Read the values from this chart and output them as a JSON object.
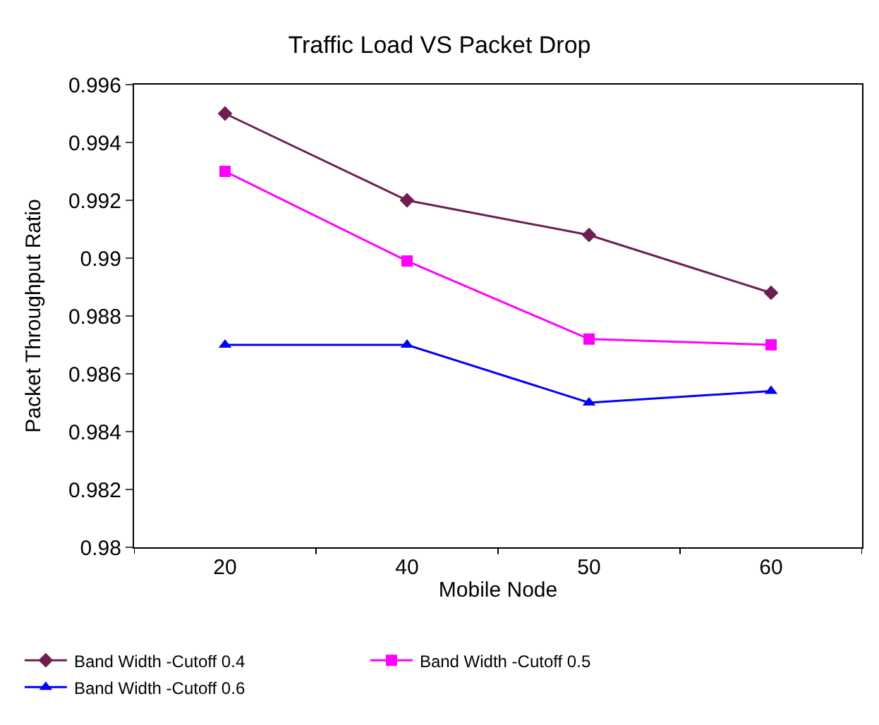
{
  "chart_data": {
    "type": "line",
    "title": "Traffic Load VS Packet Drop",
    "xlabel": "Mobile Node",
    "ylabel": "Packet Throughput Ratio",
    "categories": [
      "20",
      "40",
      "50",
      "60"
    ],
    "series": [
      {
        "name": "Band Width -Cutoff 0.4",
        "color": "#6e1f4f",
        "marker": "diamond",
        "values": [
          0.995,
          0.992,
          0.9908,
          0.9888
        ]
      },
      {
        "name": "Band Width -Cutoff 0.5",
        "color": "#ff00ff",
        "marker": "square",
        "values": [
          0.993,
          0.9899,
          0.9872,
          0.987
        ]
      },
      {
        "name": "Band Width -Cutoff 0.6",
        "color": "#0000ff",
        "marker": "triangle",
        "values": [
          0.987,
          0.987,
          0.985,
          0.9854
        ]
      }
    ],
    "ylim": [
      0.98,
      0.996
    ],
    "yticks": [
      0.98,
      0.982,
      0.984,
      0.986,
      0.988,
      0.99,
      0.992,
      0.994,
      0.996
    ],
    "legend": "bottom",
    "line_style": "solid"
  }
}
